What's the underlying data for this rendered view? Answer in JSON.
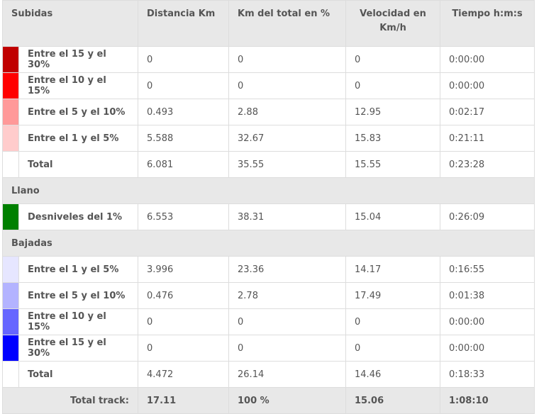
{
  "header": {
    "columns": [
      "Subidas",
      "Distancia Km",
      "Km del total en %",
      "Velocidad en Km/h",
      "Tiempo h:m:s"
    ]
  },
  "sections": [
    {
      "rows": [
        {
          "color": "#c00000",
          "label": "Entre el 15 y el 30%",
          "cells": [
            "0",
            "0",
            "0",
            "0:00:00"
          ]
        },
        {
          "color": "#ff0000",
          "label": "Entre el 10 y el 15%",
          "cells": [
            "0",
            "0",
            "0",
            "0:00:00"
          ]
        },
        {
          "color": "#ff9999",
          "label": "Entre el 5 y el 10%",
          "cells": [
            "0.493",
            "2.88",
            "12.95",
            "0:02:17"
          ]
        },
        {
          "color": "#ffcccc",
          "label": "Entre el 1 y el 5%",
          "cells": [
            "5.588",
            "32.67",
            "15.83",
            "0:21:11"
          ]
        },
        {
          "label": "Total",
          "cells": [
            "6.081",
            "35.55",
            "15.55",
            "0:23:28"
          ]
        }
      ]
    },
    {
      "title": "Llano",
      "rows": [
        {
          "color": "#008000",
          "label": "Desniveles del 1%",
          "cells": [
            "6.553",
            "38.31",
            "15.04",
            "0:26:09"
          ]
        }
      ]
    },
    {
      "title": "Bajadas",
      "rows": [
        {
          "color": "#e6e6ff",
          "label": "Entre el 1 y el 5%",
          "cells": [
            "3.996",
            "23.36",
            "14.17",
            "0:16:55"
          ]
        },
        {
          "color": "#b3b3ff",
          "label": "Entre el 5 y el 10%",
          "cells": [
            "0.476",
            "2.78",
            "17.49",
            "0:01:38"
          ]
        },
        {
          "color": "#6666ff",
          "label": "Entre el 10 y el 15%",
          "cells": [
            "0",
            "0",
            "0",
            "0:00:00"
          ]
        },
        {
          "color": "#0000ff",
          "label": "Entre el 15 y el 30%",
          "cells": [
            "0",
            "0",
            "0",
            "0:00:00"
          ]
        },
        {
          "label": "Total",
          "cells": [
            "4.472",
            "26.14",
            "14.46",
            "0:18:33"
          ]
        }
      ]
    }
  ],
  "footer": {
    "label": "Total track:",
    "cells": [
      "17.11",
      "100 %",
      "15.06",
      "1:08:10"
    ]
  }
}
